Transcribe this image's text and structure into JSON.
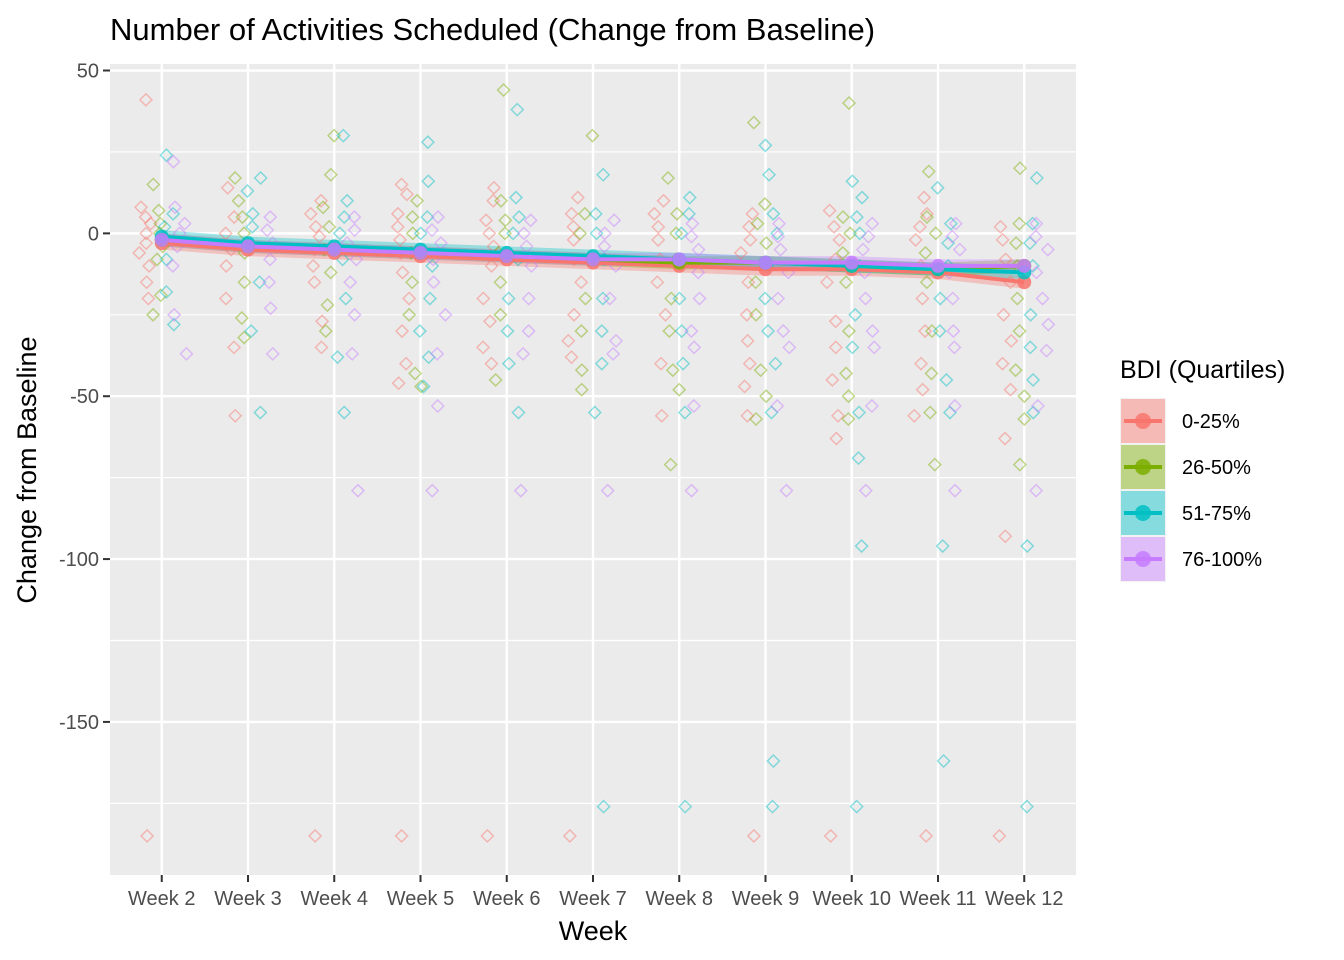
{
  "chart_data": {
    "type": "line",
    "title": "Number of Activities Scheduled (Change from Baseline)",
    "xlabel": "Week",
    "ylabel": "Change from Baseline",
    "categories": [
      "Week 2",
      "Week 3",
      "Week 4",
      "Week 5",
      "Week 6",
      "Week 7",
      "Week 8",
      "Week 9",
      "Week 10",
      "Week 11",
      "Week 12"
    ],
    "ylim": [
      -197,
      52
    ],
    "yticks": [
      50,
      0,
      -50,
      -100,
      -150
    ],
    "ytick_labels": [
      "50",
      "0",
      "-50",
      "-100",
      "-150"
    ],
    "grid": true,
    "legend": {
      "title": "BDI (Quartiles)",
      "position": "right",
      "entries": [
        "0-25%",
        "26-50%",
        "51-75%",
        "76-100%"
      ]
    },
    "series": [
      {
        "name": "0-25%",
        "color": "#F8766D",
        "values": [
          -3,
          -5,
          -6,
          -7,
          -8,
          -9,
          -10,
          -11,
          -11,
          -12,
          -15
        ],
        "band_halfwidth": 2,
        "points": [
          [
            41,
            8,
            5,
            3,
            0,
            -3,
            -6,
            -10,
            -15,
            -20,
            -185
          ],
          [
            14,
            5,
            0,
            -5,
            -10,
            -20,
            -35,
            -56
          ],
          [
            10,
            6,
            2,
            -1,
            -5,
            -10,
            -15,
            -27,
            -35,
            -185
          ],
          [
            15,
            12,
            6,
            2,
            -2,
            -6,
            -12,
            -20,
            -30,
            -40,
            -46,
            -185
          ],
          [
            14,
            10,
            4,
            0,
            -4,
            -10,
            -20,
            -27,
            -35,
            -40,
            -185
          ],
          [
            11,
            6,
            2,
            -2,
            -8,
            -15,
            -25,
            -33,
            -38,
            -185
          ],
          [
            10,
            6,
            2,
            -2,
            -8,
            -15,
            -25,
            -40,
            -56
          ],
          [
            6,
            2,
            -2,
            -6,
            -15,
            -25,
            -33,
            -40,
            -47,
            -56,
            -185
          ],
          [
            7,
            2,
            -2,
            -8,
            -15,
            -27,
            -35,
            -45,
            -56,
            -63,
            -185
          ],
          [
            11,
            6,
            2,
            -2,
            -10,
            -20,
            -30,
            -40,
            -48,
            -56,
            -185
          ],
          [
            2,
            -2,
            -8,
            -15,
            -25,
            -33,
            -40,
            -48,
            -63,
            -93,
            -185
          ]
        ]
      },
      {
        "name": "26-50%",
        "color": "#7CAE00",
        "values": [
          -2,
          -4,
          -5,
          -6,
          -7,
          -8,
          -9,
          -9,
          -10,
          -11,
          -10
        ],
        "band_halfwidth": 2,
        "points": [
          [
            15,
            7,
            3,
            0,
            -4,
            -8,
            -19,
            -25
          ],
          [
            17,
            10,
            5,
            0,
            -6,
            -15,
            -26,
            -32
          ],
          [
            30,
            18,
            8,
            2,
            -5,
            -12,
            -22,
            -30
          ],
          [
            10,
            5,
            0,
            -6,
            -15,
            -25,
            -43,
            -47
          ],
          [
            44,
            10,
            4,
            0,
            -6,
            -15,
            -25,
            -45
          ],
          [
            30,
            6,
            0,
            -8,
            -20,
            -30,
            -42,
            -48
          ],
          [
            17,
            6,
            0,
            -8,
            -20,
            -30,
            -42,
            -48,
            -71
          ],
          [
            34,
            9,
            3,
            -3,
            -15,
            -25,
            -42,
            -50,
            -57
          ],
          [
            40,
            5,
            0,
            -6,
            -15,
            -30,
            -43,
            -50,
            -57
          ],
          [
            19,
            5,
            0,
            -6,
            -15,
            -30,
            -43,
            -55,
            -71
          ],
          [
            20,
            3,
            -3,
            -10,
            -20,
            -30,
            -42,
            -50,
            -57,
            -71
          ]
        ]
      },
      {
        "name": "51-75%",
        "color": "#00BFC4",
        "values": [
          -1,
          -3,
          -4,
          -5,
          -6,
          -7,
          -8,
          -9,
          -10,
          -11,
          -12
        ],
        "band_halfwidth": 2,
        "points": [
          [
            24,
            6,
            2,
            -2,
            -8,
            -18,
            -28
          ],
          [
            17,
            13,
            6,
            2,
            -4,
            -15,
            -30,
            -55
          ],
          [
            30,
            10,
            5,
            0,
            -8,
            -20,
            -38,
            -55
          ],
          [
            28,
            16,
            5,
            0,
            -10,
            -20,
            -30,
            -38,
            -47
          ],
          [
            38,
            11,
            5,
            0,
            -8,
            -20,
            -30,
            -40,
            -55
          ],
          [
            18,
            6,
            0,
            -8,
            -20,
            -30,
            -40,
            -55,
            -176
          ],
          [
            11,
            6,
            0,
            -8,
            -20,
            -30,
            -40,
            -55,
            -176
          ],
          [
            27,
            18,
            6,
            0,
            -10,
            -20,
            -30,
            -40,
            -55,
            -162,
            -176
          ],
          [
            16,
            11,
            5,
            0,
            -10,
            -25,
            -35,
            -55,
            -69,
            -96,
            -176
          ],
          [
            14,
            3,
            -3,
            -10,
            -20,
            -30,
            -45,
            -55,
            -96,
            -162
          ],
          [
            17,
            3,
            -3,
            -10,
            -25,
            -35,
            -45,
            -55,
            -96,
            -176
          ]
        ]
      },
      {
        "name": "76-100%",
        "color": "#C77CFF",
        "values": [
          -2,
          -4,
          -5,
          -6,
          -7,
          -8,
          -8,
          -9,
          -9,
          -10,
          -10
        ],
        "band_halfwidth": 2,
        "points": [
          [
            22,
            8,
            3,
            0,
            -4,
            -10,
            -25,
            -37
          ],
          [
            5,
            1,
            -3,
            -8,
            -15,
            -23,
            -37
          ],
          [
            5,
            1,
            -3,
            -8,
            -15,
            -25,
            -37,
            -79
          ],
          [
            5,
            1,
            -3,
            -8,
            -15,
            -25,
            -37,
            -53,
            -79
          ],
          [
            4,
            0,
            -4,
            -10,
            -20,
            -30,
            -37,
            -79
          ],
          [
            4,
            0,
            -4,
            -10,
            -20,
            -33,
            -37,
            -79
          ],
          [
            3,
            -1,
            -5,
            -12,
            -20,
            -30,
            -35,
            -53,
            -79
          ],
          [
            3,
            -1,
            -5,
            -12,
            -20,
            -30,
            -35,
            -53,
            -79
          ],
          [
            3,
            -1,
            -5,
            -12,
            -20,
            -30,
            -35,
            -53,
            -79
          ],
          [
            3,
            -1,
            -5,
            -12,
            -20,
            -30,
            -35,
            -53,
            -79
          ],
          [
            3,
            -1,
            -5,
            -12,
            -20,
            -28,
            -36,
            -53,
            -79
          ]
        ]
      }
    ]
  }
}
